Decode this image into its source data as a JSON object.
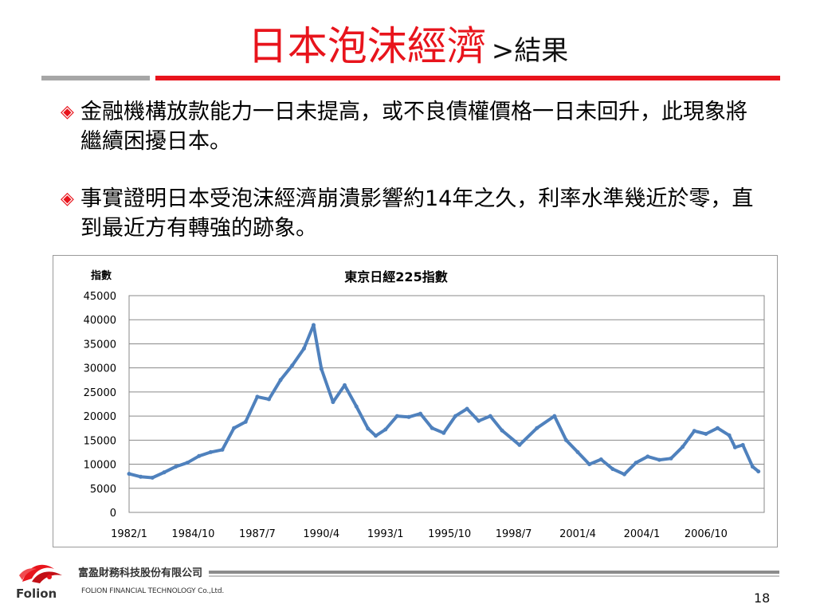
{
  "slide": {
    "title_main": "日本泡沫經濟",
    "title_sub": ">結果",
    "bullets": [
      "金融機構放款能力一日未提高，或不良債權價格一日未回升，此現象將繼續困擾日本。",
      "事實證明日本受泡沫經濟崩潰影響約14年之久，利率水準幾近於零，直到最近方有轉強的跡象。"
    ],
    "bullet_marker": "◈",
    "page_number": "18"
  },
  "footer": {
    "company_cn": "富盈財務科技股份有限公司",
    "company_en": "FOLION FINANCIAL TECHNOLOGY Co.,Ltd.",
    "brand": "Folion",
    "logo_icon": "folion-logo-icon"
  },
  "colors": {
    "accent_red": "#e8141c",
    "rule_grey": "#a6a6a6",
    "line_series": "#4f81bd"
  },
  "chart_data": {
    "type": "line",
    "title": "東京日經225指數",
    "ylabel": "指數",
    "xlabel": "",
    "ylim": [
      0,
      45000
    ],
    "yticks": [
      0,
      5000,
      10000,
      15000,
      20000,
      25000,
      30000,
      35000,
      40000,
      45000
    ],
    "xticks": [
      "1982/1",
      "1984/10",
      "1987/7",
      "1990/4",
      "1993/1",
      "1995/10",
      "1998/7",
      "2001/4",
      "2004/1",
      "2006/10"
    ],
    "grid": true,
    "legend": "none",
    "series": [
      {
        "x": [
          "1982/1",
          "1982/7",
          "1983/1",
          "1983/7",
          "1984/1",
          "1984/7",
          "1985/1",
          "1985/7",
          "1986/1",
          "1986/7",
          "1987/1",
          "1987/7",
          "1988/1",
          "1988/7",
          "1989/1",
          "1989/7",
          "1989/12",
          "1990/4",
          "1990/10",
          "1991/4",
          "1991/10",
          "1992/4",
          "1992/8",
          "1993/1",
          "1993/7",
          "1994/1",
          "1994/7",
          "1995/1",
          "1995/7",
          "1996/1",
          "1996/7",
          "1997/1",
          "1997/7",
          "1998/1",
          "1998/10",
          "1999/7",
          "2000/4",
          "2000/10",
          "2001/4",
          "2001/10",
          "2002/4",
          "2002/10",
          "2003/4",
          "2003/10",
          "2004/4",
          "2004/10",
          "2005/4",
          "2005/10",
          "2006/4",
          "2006/10",
          "2007/4",
          "2007/10",
          "2008/1",
          "2008/5",
          "2008/10",
          "2009/1"
        ],
        "y": [
          8000,
          7400,
          7200,
          8300,
          9500,
          10300,
          11700,
          12500,
          13000,
          17500,
          18800,
          24000,
          23500,
          27500,
          30500,
          34000,
          38900,
          29800,
          22900,
          26400,
          22000,
          17400,
          15900,
          17200,
          20000,
          19800,
          20500,
          17500,
          16500,
          20000,
          21500,
          19000,
          20000,
          17000,
          14000,
          17500,
          20000,
          15000,
          12500,
          10000,
          11000,
          9000,
          7900,
          10300,
          11600,
          10900,
          11200,
          13600,
          16900,
          16300,
          17500,
          16000,
          13500,
          14000,
          9500,
          8500
        ]
      }
    ]
  }
}
